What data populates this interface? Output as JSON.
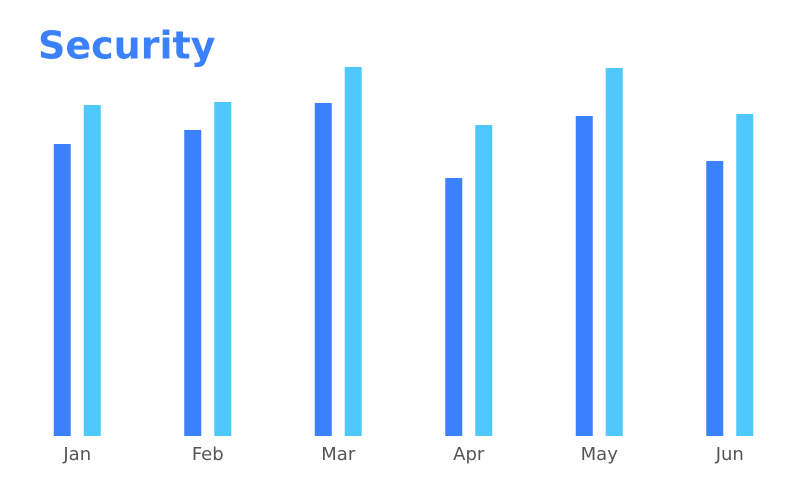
{
  "chart_data": {
    "type": "bar",
    "title": "Security",
    "categories": [
      "Jan",
      "Feb",
      "Mar",
      "Apr",
      "May",
      "Jun"
    ],
    "series": [
      {
        "color": "#3a81fb",
        "values": [
          292,
          306,
          333,
          258,
          320,
          275
        ]
      },
      {
        "color": "#4fc8fc",
        "values": [
          331,
          334,
          369,
          311,
          368,
          322
        ]
      }
    ]
  }
}
